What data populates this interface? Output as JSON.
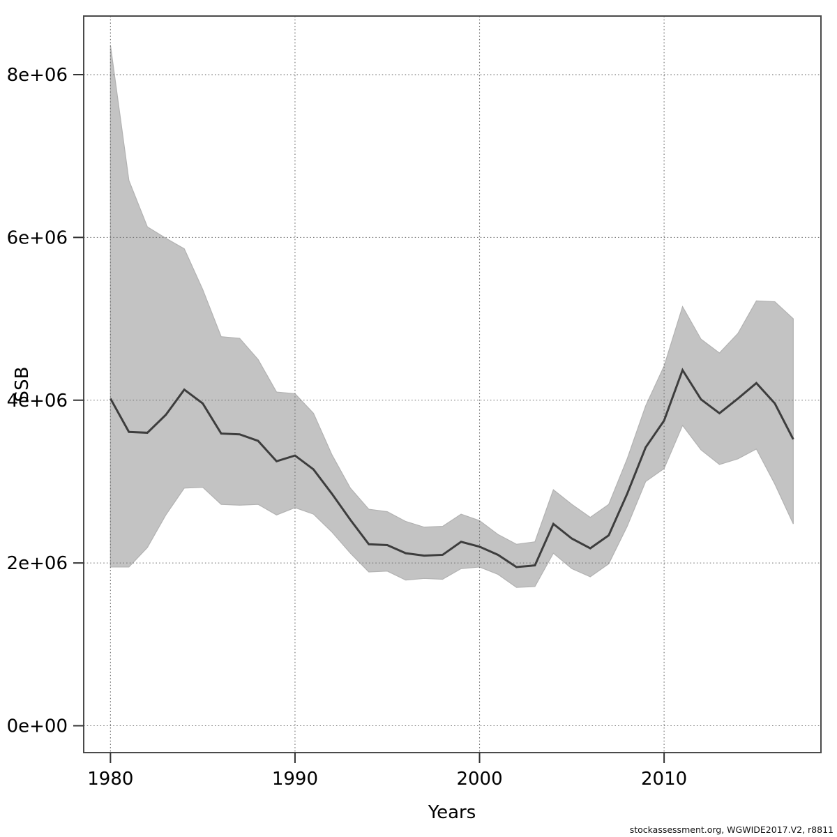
{
  "footer": {
    "credit": "stockassessment.org, WGWIDE2017.V2, r8811"
  },
  "chart_data": {
    "type": "area",
    "title": "",
    "xlabel": "Years",
    "ylabel": "SSB",
    "legend": null,
    "grid": true,
    "xlim": [
      1978.55,
      2018.5
    ],
    "ylim": [
      -330000,
      8720000
    ],
    "x_tick_values": [
      1980,
      1990,
      2000,
      2010
    ],
    "x_tick_labels": [
      "1980",
      "1990",
      "2000",
      "2010"
    ],
    "y_tick_values": [
      0,
      2000000,
      4000000,
      6000000,
      8000000
    ],
    "y_tick_labels": [
      "0e+00",
      "2e+06",
      "4e+06",
      "6e+06",
      "8e+06"
    ],
    "band_color": "#c3c3c3",
    "band_edge_color": "#b2b2b2",
    "line_color": "#3d3d3d",
    "grid_color": "#6e6e6e",
    "axis_color": "#4a4a4a",
    "x": [
      1980,
      1981,
      1982,
      1983,
      1984,
      1985,
      1986,
      1987,
      1988,
      1989,
      1990,
      1991,
      1992,
      1993,
      1994,
      1995,
      1996,
      1997,
      1998,
      1999,
      2000,
      2001,
      2002,
      2003,
      2004,
      2005,
      2006,
      2007,
      2008,
      2009,
      2010,
      2011,
      2012,
      2013,
      2014,
      2015,
      2016,
      2017
    ],
    "series": [
      {
        "name": "median",
        "values": [
          4020000,
          3610000,
          3600000,
          3820000,
          4130000,
          3960000,
          3590000,
          3580000,
          3500000,
          3250000,
          3320000,
          3150000,
          2850000,
          2530000,
          2230000,
          2220000,
          2120000,
          2090000,
          2100000,
          2260000,
          2200000,
          2100000,
          1950000,
          1970000,
          2480000,
          2300000,
          2180000,
          2340000,
          2850000,
          3420000,
          3750000,
          4370000,
          4010000,
          3840000,
          4020000,
          4210000,
          3960000,
          3520000
        ]
      },
      {
        "name": "lower",
        "values": [
          1950000,
          1950000,
          2190000,
          2590000,
          2920000,
          2930000,
          2720000,
          2710000,
          2720000,
          2590000,
          2680000,
          2600000,
          2380000,
          2120000,
          1890000,
          1900000,
          1790000,
          1810000,
          1800000,
          1930000,
          1950000,
          1860000,
          1700000,
          1710000,
          2120000,
          1930000,
          1830000,
          1990000,
          2450000,
          3000000,
          3160000,
          3690000,
          3390000,
          3210000,
          3280000,
          3400000,
          2970000,
          2480000
        ]
      },
      {
        "name": "upper",
        "values": [
          8360000,
          6700000,
          6130000,
          5990000,
          5860000,
          5360000,
          4780000,
          4760000,
          4500000,
          4100000,
          4080000,
          3840000,
          3330000,
          2920000,
          2660000,
          2630000,
          2510000,
          2440000,
          2450000,
          2600000,
          2520000,
          2350000,
          2230000,
          2260000,
          2900000,
          2720000,
          2560000,
          2720000,
          3280000,
          3930000,
          4420000,
          5150000,
          4750000,
          4580000,
          4820000,
          5220000,
          5210000,
          5000000
        ]
      }
    ]
  }
}
